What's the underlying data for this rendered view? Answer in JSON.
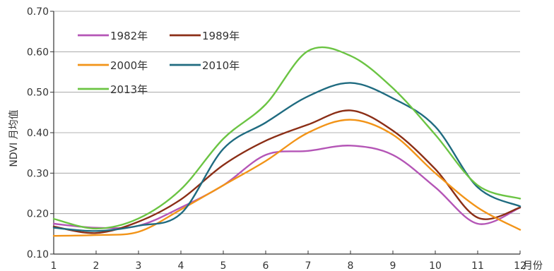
{
  "chart_data": {
    "type": "line",
    "title": "",
    "xlabel": "月份",
    "ylabel": "NDVI 月均值",
    "x": [
      1,
      2,
      3,
      4,
      5,
      6,
      7,
      8,
      9,
      10,
      11,
      12
    ],
    "xlim": [
      1,
      12
    ],
    "ylim": [
      0.1,
      0.7
    ],
    "x_ticks": [
      "1",
      "2",
      "3",
      "4",
      "5",
      "6",
      "7",
      "8",
      "9",
      "10",
      "11",
      "12"
    ],
    "y_ticks": [
      "0.10",
      "0.20",
      "0.30",
      "0.40",
      "0.50",
      "0.60",
      "0.70"
    ],
    "grid": "horizontal",
    "legend_position": "top-left",
    "series": [
      {
        "name": "1982年",
        "color": "#b455b6",
        "values": [
          0.175,
          0.165,
          0.17,
          0.215,
          0.27,
          0.345,
          0.355,
          0.368,
          0.345,
          0.265,
          0.175,
          0.215
        ]
      },
      {
        "name": "1989年",
        "color": "#8b2e16",
        "values": [
          0.168,
          0.152,
          0.18,
          0.235,
          0.32,
          0.38,
          0.42,
          0.455,
          0.405,
          0.31,
          0.19,
          0.215
        ]
      },
      {
        "name": "2000年",
        "color": "#f29418",
        "values": [
          0.145,
          0.147,
          0.155,
          0.21,
          0.27,
          0.33,
          0.4,
          0.432,
          0.395,
          0.3,
          0.215,
          0.16
        ]
      },
      {
        "name": "2010年",
        "color": "#1f6b80",
        "values": [
          0.165,
          0.157,
          0.17,
          0.2,
          0.36,
          0.425,
          0.49,
          0.523,
          0.485,
          0.415,
          0.265,
          0.218
        ]
      },
      {
        "name": "2013年",
        "color": "#6bc443",
        "values": [
          0.187,
          0.163,
          0.188,
          0.26,
          0.385,
          0.47,
          0.602,
          0.59,
          0.51,
          0.395,
          0.27,
          0.237
        ]
      }
    ]
  }
}
